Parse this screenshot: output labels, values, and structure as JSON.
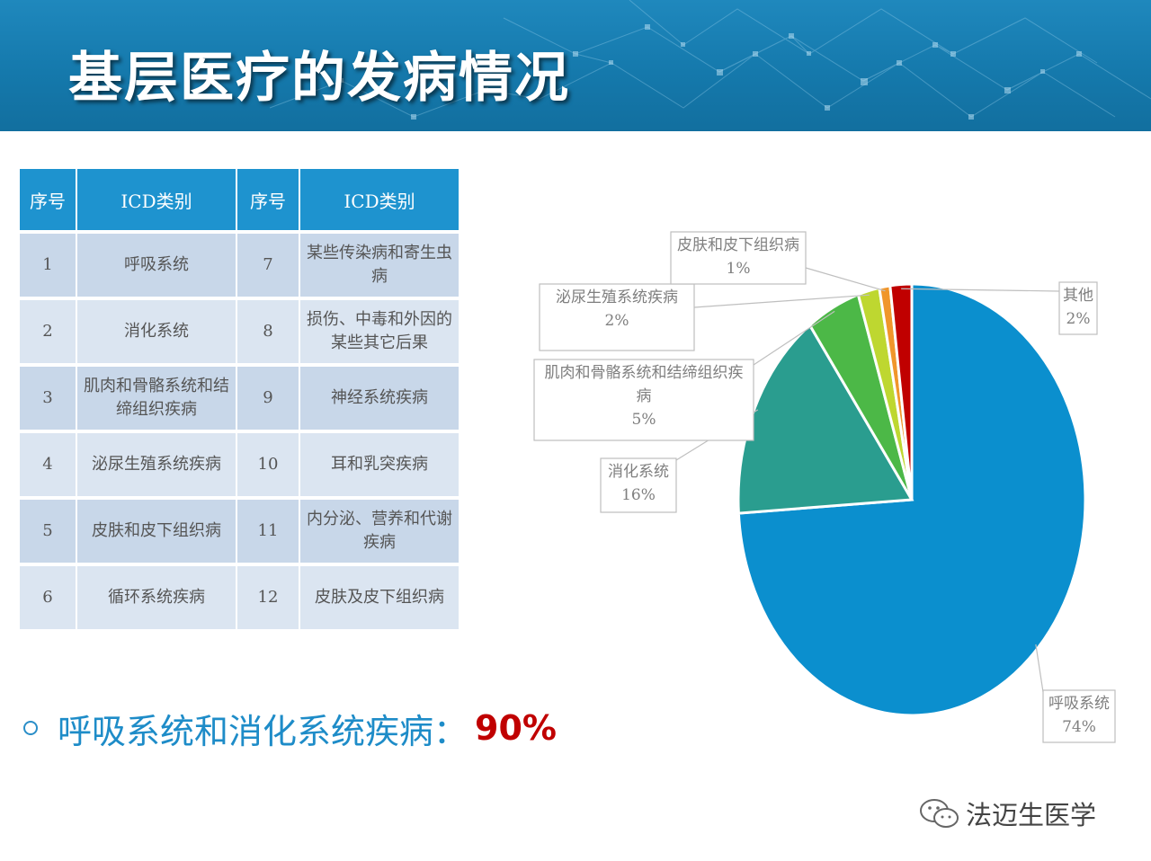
{
  "page": {
    "title": "基层医疗的发病情况"
  },
  "table": {
    "headers": [
      "序号",
      "ICD类别",
      "序号",
      "ICD类别"
    ],
    "rows": [
      {
        "no1": "1",
        "cat1": "呼吸系统",
        "no2": "7",
        "cat2": "某些传染病和寄生虫病"
      },
      {
        "no1": "2",
        "cat1": "消化系统",
        "no2": "8",
        "cat2": "损伤、中毒和外因的某些其它后果"
      },
      {
        "no1": "3",
        "cat1": "肌肉和骨骼系统和结缔组织疾病",
        "no2": "9",
        "cat2": "神经系统疾病"
      },
      {
        "no1": "4",
        "cat1": "泌尿生殖系统疾病",
        "no2": "10",
        "cat2": "耳和乳突疾病"
      },
      {
        "no1": "5",
        "cat1": "皮肤和皮下组织病",
        "no2": "11",
        "cat2": "内分泌、营养和代谢疾病"
      },
      {
        "no1": "6",
        "cat1": "循环系统疾病",
        "no2": "12",
        "cat2": "皮肤及皮下组织病"
      }
    ]
  },
  "summary": {
    "text": "呼吸系统和消化系统疾病：",
    "value": "90%"
  },
  "chart_data": {
    "type": "pie",
    "title": "",
    "slices": [
      {
        "label": "呼吸系统",
        "value": 74,
        "display": "74%",
        "color": "#0b8fce"
      },
      {
        "label": "消化系统",
        "value": 16,
        "display": "16%",
        "color": "#2a9d8f"
      },
      {
        "label": "肌肉和骨骼系统和结缔组织疾病",
        "value": 5,
        "display": "5%",
        "color": "#4cb847"
      },
      {
        "label": "泌尿生殖系统疾病",
        "value": 2,
        "display": "2%",
        "color": "#bed730"
      },
      {
        "label": "皮肤和皮下组织病",
        "value": 1,
        "display": "1%",
        "color": "#f0962b"
      },
      {
        "label": "其他",
        "value": 2,
        "display": "2%",
        "color": "#c00000"
      }
    ]
  },
  "watermark": {
    "text": "法迈生医学",
    "icon": "wechat-icon"
  },
  "colors": {
    "header": "#1579ac",
    "table_header": "#1e93cf",
    "accent_text": "#1e8cc8",
    "highlight": "#c00000"
  }
}
